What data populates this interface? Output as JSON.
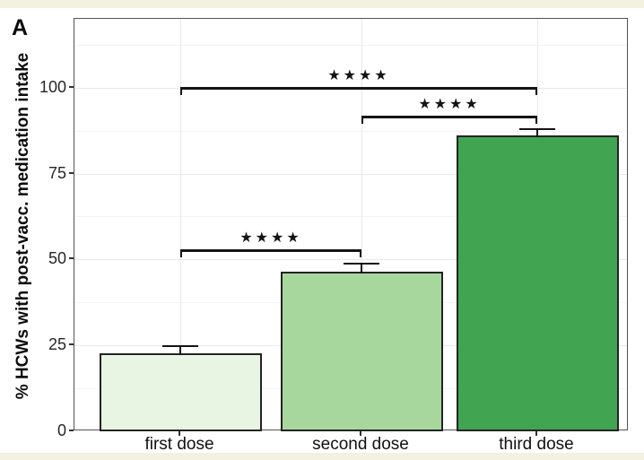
{
  "panel_label": "A",
  "chart_data": {
    "type": "bar",
    "title": "",
    "categories": [
      "first dose",
      "second dose",
      "third dose"
    ],
    "values": [
      22.7,
      46.4,
      86.1
    ],
    "errors_upper": [
      2.2,
      2.4,
      1.9
    ],
    "ylabel": "% HCWs with post-vacc. medication intake",
    "xlabel": "",
    "ylim": [
      0,
      120
    ],
    "yticks": [
      0,
      25,
      50,
      75,
      100
    ],
    "y_minor_step": 12.5,
    "grid": "horizontal major+minor, vertical major at category centers",
    "legend": "none",
    "bar_fill_colors": [
      "#e8f5e2",
      "#a7d79d",
      "#41a451"
    ],
    "bar_border_color": "#232323",
    "significance_brackets": [
      {
        "from": "first dose",
        "to": "second dose",
        "label": "★★★★",
        "y_value": 53
      },
      {
        "from": "second dose",
        "to": "third dose",
        "label": "★★★★",
        "y_value": 91.8
      },
      {
        "from": "first dose",
        "to": "third dose",
        "label": "★★★★",
        "y_value": 100.2
      }
    ]
  },
  "colors": {
    "outer_frame": "#f3f2e0",
    "figure_background": "#ffffff",
    "panel_background": "#ffffff",
    "panel_border": "#545454",
    "grid_major": "#e8e8e8",
    "grid_minor": "#f4f4f4",
    "axis_tick": "#333333",
    "axis_text": "#262626",
    "annotation": "#141414"
  }
}
